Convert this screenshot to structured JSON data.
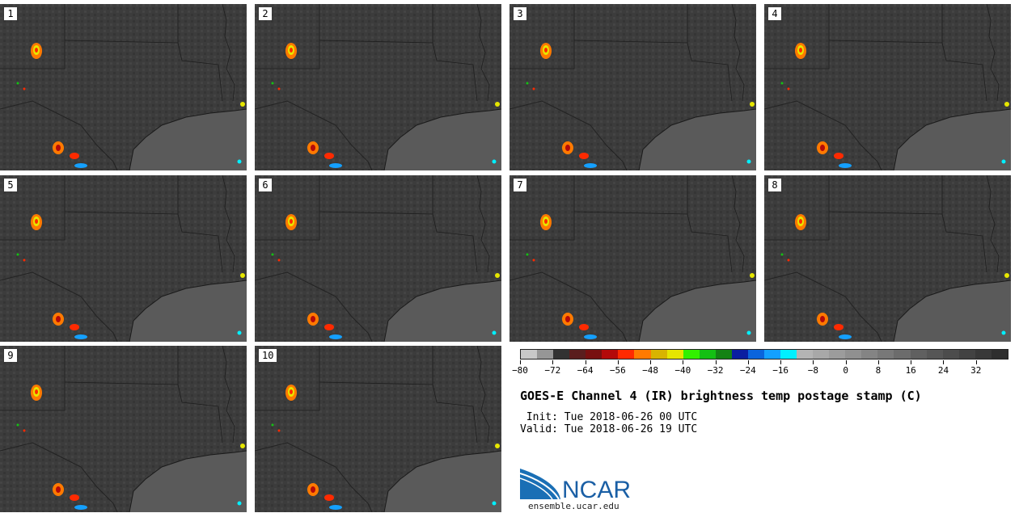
{
  "panels": [
    {
      "label": "1"
    },
    {
      "label": "2"
    },
    {
      "label": "3"
    },
    {
      "label": "4"
    },
    {
      "label": "5"
    },
    {
      "label": "6"
    },
    {
      "label": "7"
    },
    {
      "label": "8"
    },
    {
      "label": "9"
    },
    {
      "label": "10"
    }
  ],
  "colorbar": {
    "colors": [
      "#c8c8c8",
      "#969696",
      "#323232",
      "#5a1e1e",
      "#781010",
      "#b40a0a",
      "#ff2a00",
      "#ff7a00",
      "#d8b400",
      "#e6e600",
      "#32f000",
      "#14c014",
      "#148214",
      "#0a1ea0",
      "#0a64dc",
      "#14a0ff",
      "#00f0ff",
      "#b4b4b4",
      "#a8a8a8",
      "#9c9c9c",
      "#909090",
      "#848484",
      "#787878",
      "#6c6c6c",
      "#606060",
      "#565656",
      "#4c4c4c",
      "#424242",
      "#383838",
      "#2e2e2e"
    ],
    "range": [
      -80,
      40
    ],
    "tick_values": [
      -80,
      -72,
      -64,
      -56,
      -48,
      -40,
      -32,
      -24,
      -16,
      -8,
      0,
      8,
      16,
      24,
      32
    ],
    "tick_labels": [
      "−80",
      "−72",
      "−64",
      "−56",
      "−48",
      "−40",
      "−32",
      "−24",
      "−16",
      "−8",
      "0",
      "8",
      "16",
      "24",
      "32"
    ]
  },
  "title": "GOES-E Channel 4 (IR) brightness temp postage stamp (C)",
  "init": " Init: Tue 2018-06-26 00 UTC",
  "valid": "Valid: Tue 2018-06-26 19 UTC",
  "logo": {
    "text": "NCAR",
    "url": "ensemble.ucar.edu"
  }
}
